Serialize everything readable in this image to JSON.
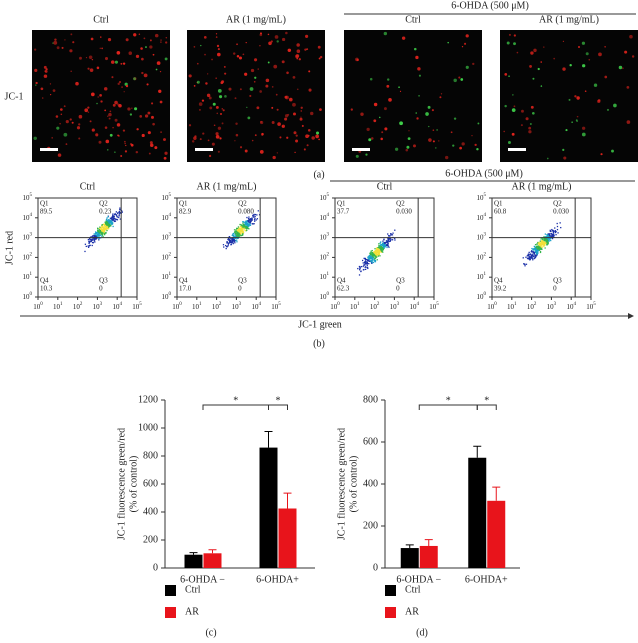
{
  "panel_a": {
    "row_label": "JC-1",
    "group_label": "6-OHDA (500 μM)",
    "columns": [
      "Ctrl",
      "AR (1 mg/mL)",
      "Ctrl",
      "AR (1 mg/mL)"
    ],
    "caption": "(a)"
  },
  "panel_b": {
    "group_label": "6-OHDA (500 μM)",
    "columns": [
      "Ctrl",
      "AR (1 mg/mL)",
      "Ctrl",
      "AR (1 mg/mL)"
    ],
    "y_label": "JC-1 red",
    "x_label": "JC-1 green",
    "tick_base": "10",
    "tick_exponents": [
      "0",
      "1",
      "2",
      "3",
      "4",
      "5"
    ],
    "quadrant_names": [
      "Q1",
      "Q2",
      "Q3",
      "Q4"
    ],
    "plots": [
      [
        "89.5",
        "0.23",
        "0",
        "10.3"
      ],
      [
        "82.9",
        "0.080",
        "0",
        "17.0"
      ],
      [
        "37.7",
        "0.030",
        "0",
        "62.3"
      ],
      [
        "60.8",
        "0.030",
        "0",
        "39.2"
      ]
    ],
    "caption": "(b)"
  },
  "chart_data": [
    {
      "type": "bar",
      "y_label": [
        "JC-1 fluorescence green/red",
        "(% of control)"
      ],
      "categories": [
        "6-OHDA −",
        "6-OHDA+"
      ],
      "series": [
        {
          "name": "Ctrl",
          "color": "#000000",
          "values": [
            95,
            860
          ],
          "errors": [
            15,
            115
          ]
        },
        {
          "name": "AR",
          "color": "#e8141b",
          "values": [
            105,
            425
          ],
          "errors": [
            25,
            110
          ]
        }
      ],
      "ylim": [
        0,
        1200
      ],
      "yticks": [
        0,
        200,
        400,
        600,
        800,
        1000,
        1200
      ],
      "annotations": [
        "*",
        "*"
      ],
      "caption": "(c)"
    },
    {
      "type": "bar",
      "y_label": [
        "JC-1 fluorescence green/red",
        "(% of control)"
      ],
      "categories": [
        "6-OHDA −",
        "6-OHDA+"
      ],
      "series": [
        {
          "name": "Ctrl",
          "color": "#000000",
          "values": [
            95,
            525
          ],
          "errors": [
            15,
            55
          ]
        },
        {
          "name": "AR",
          "color": "#e8141b",
          "values": [
            105,
            320
          ],
          "errors": [
            30,
            65
          ]
        }
      ],
      "ylim": [
        0,
        800
      ],
      "yticks": [
        0,
        200,
        400,
        600,
        800
      ],
      "annotations": [
        "*",
        "*"
      ],
      "caption": "(d)"
    }
  ]
}
